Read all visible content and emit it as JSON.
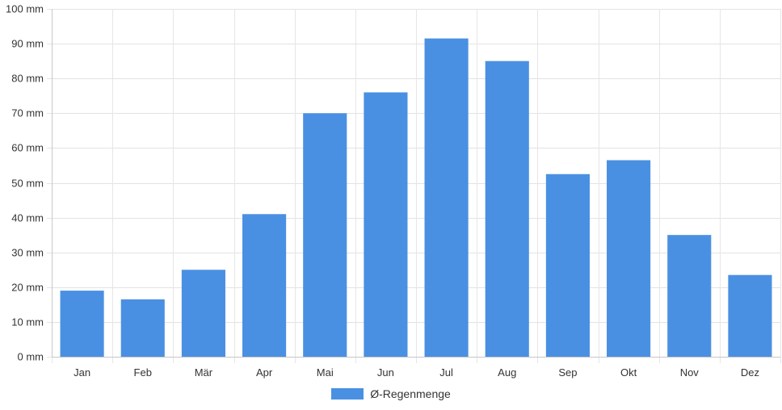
{
  "chart_data": {
    "type": "bar",
    "title": "",
    "xlabel": "",
    "ylabel": "",
    "categories": [
      "Jan",
      "Feb",
      "Mär",
      "Apr",
      "Mai",
      "Jun",
      "Jul",
      "Aug",
      "Sep",
      "Okt",
      "Nov",
      "Dez"
    ],
    "series": [
      {
        "name": "Ø-Regenmenge",
        "values": [
          19,
          16.5,
          25,
          41,
          70,
          76,
          91.5,
          85,
          52.5,
          56.5,
          35,
          23.5
        ],
        "color": "#4a90e2"
      }
    ],
    "ylim": [
      0,
      100
    ],
    "y_ticks": [
      0,
      10,
      20,
      30,
      40,
      50,
      60,
      70,
      80,
      90,
      100
    ],
    "y_tick_labels": [
      "0 mm",
      "10 mm",
      "20 mm",
      "30 mm",
      "40 mm",
      "50 mm",
      "60 mm",
      "70 mm",
      "80 mm",
      "90 mm",
      "100 mm"
    ],
    "grid": true,
    "legend_position": "bottom-center"
  }
}
